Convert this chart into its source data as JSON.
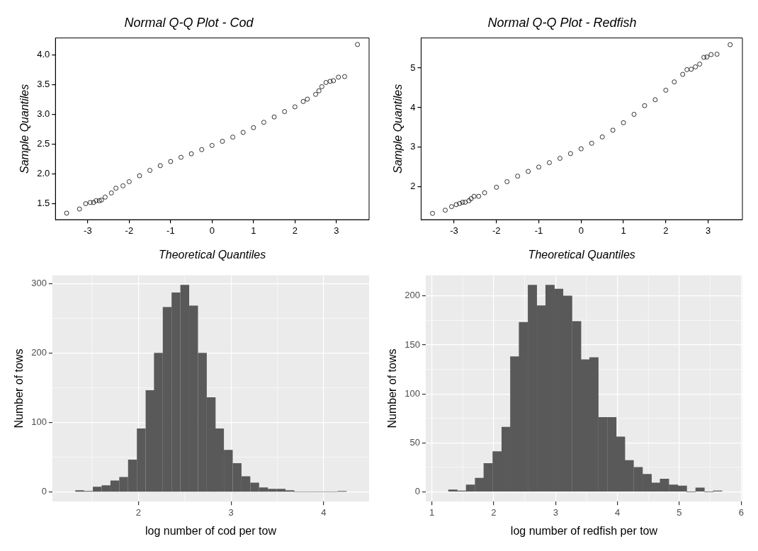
{
  "chart_data": [
    {
      "type": "scatter",
      "title": "Normal Q-Q Plot - Cod",
      "xlabel": "Theoretical Quantiles",
      "ylabel": "Sample Quantiles",
      "color": "#000000",
      "marker": "circle",
      "grid": false,
      "x": [
        -3.51,
        -3.2,
        -3.05,
        -2.94,
        -2.86,
        -2.8,
        -2.72,
        -2.67,
        -2.58,
        -2.43,
        -2.32,
        -2.15,
        -2.0,
        -1.75,
        -1.5,
        -1.25,
        -1.0,
        -0.75,
        -0.5,
        -0.25,
        0.0,
        0.25,
        0.5,
        0.75,
        1.0,
        1.25,
        1.5,
        1.75,
        2.0,
        2.2,
        2.3,
        2.5,
        2.58,
        2.65,
        2.75,
        2.85,
        2.93,
        3.05,
        3.2,
        3.51
      ],
      "values": [
        1.34,
        1.41,
        1.5,
        1.52,
        1.52,
        1.55,
        1.55,
        1.56,
        1.61,
        1.68,
        1.76,
        1.8,
        1.87,
        1.97,
        2.06,
        2.14,
        2.21,
        2.28,
        2.34,
        2.41,
        2.48,
        2.55,
        2.62,
        2.7,
        2.78,
        2.87,
        2.96,
        3.05,
        3.13,
        3.22,
        3.26,
        3.34,
        3.4,
        3.47,
        3.54,
        3.56,
        3.57,
        3.63,
        3.64,
        4.18
      ],
      "xlim": [
        -3.78,
        3.79
      ],
      "xticks": [
        -3,
        -2,
        -1,
        0,
        1,
        2,
        3
      ],
      "ylim": [
        1.23,
        4.29
      ],
      "yticks": [
        1.5,
        {
          "value": 2,
          "label": "2.0"
        },
        2.5,
        {
          "value": 3,
          "label": "3.0"
        },
        3.5,
        {
          "value": 4,
          "label": "4.0"
        }
      ]
    },
    {
      "type": "scatter",
      "title": "Normal Q-Q Plot - Redfish",
      "xlabel": "Theoretical Quantiles",
      "ylabel": "Sample Quantiles",
      "color": "#000000",
      "marker": "circle",
      "grid": false,
      "x": [
        -3.51,
        -3.21,
        -3.06,
        -2.95,
        -2.87,
        -2.8,
        -2.74,
        -2.65,
        -2.6,
        -2.53,
        -2.42,
        -2.28,
        -2.0,
        -1.75,
        -1.5,
        -1.25,
        -1.0,
        -0.75,
        -0.5,
        -0.25,
        0.0,
        0.25,
        0.5,
        0.75,
        1.0,
        1.25,
        1.5,
        1.75,
        2.0,
        2.2,
        2.4,
        2.5,
        2.6,
        2.7,
        2.8,
        2.9,
        2.97,
        3.07,
        3.21,
        3.52
      ],
      "values": [
        1.33,
        1.41,
        1.5,
        1.55,
        1.58,
        1.61,
        1.61,
        1.65,
        1.7,
        1.76,
        1.76,
        1.85,
        1.99,
        2.13,
        2.27,
        2.39,
        2.5,
        2.61,
        2.72,
        2.84,
        2.96,
        3.1,
        3.26,
        3.43,
        3.62,
        3.83,
        4.05,
        4.2,
        4.44,
        4.65,
        4.84,
        4.96,
        4.97,
        5.03,
        5.1,
        5.27,
        5.28,
        5.34,
        5.35,
        5.59
      ],
      "xlim": [
        -3.78,
        3.81
      ],
      "xticks": [
        -3,
        -2,
        -1,
        0,
        1,
        2,
        3
      ],
      "ylim": [
        1.17,
        5.76
      ],
      "yticks": [
        2,
        3,
        4,
        5
      ]
    },
    {
      "type": "histogram",
      "xlabel": "log number of cod per tow",
      "ylabel": "Number of tows",
      "color": "#595959",
      "grid": true,
      "bins": [
        1.32,
        1.41,
        1.51,
        1.6,
        1.7,
        1.79,
        1.89,
        1.98,
        2.08,
        2.17,
        2.26,
        2.36,
        2.45,
        2.55,
        2.64,
        2.74,
        2.83,
        2.92,
        3.02,
        3.11,
        3.21,
        3.3,
        3.4,
        3.49,
        3.59,
        3.68,
        3.77,
        3.87,
        3.96,
        4.06,
        4.15,
        4.25
      ],
      "values": [
        2,
        1,
        7,
        9,
        16,
        21,
        46,
        91,
        146,
        200,
        266,
        287,
        298,
        268,
        200,
        136,
        91,
        60,
        41,
        22,
        13,
        6,
        4,
        4,
        2,
        0,
        0,
        0,
        0,
        0,
        1
      ],
      "xlim": [
        1.07,
        4.49
      ],
      "xticks": [
        2,
        3,
        4
      ],
      "ylim": [
        -14,
        312
      ],
      "yticks": [
        0,
        100,
        200,
        300
      ]
    },
    {
      "type": "histogram",
      "xlabel": "log number of redfish per tow",
      "ylabel": "Number of tows",
      "color": "#595959",
      "grid": true,
      "bins": [
        1.27,
        1.41,
        1.55,
        1.7,
        1.84,
        1.98,
        2.13,
        2.27,
        2.41,
        2.55,
        2.7,
        2.84,
        2.98,
        3.12,
        3.27,
        3.41,
        3.55,
        3.69,
        3.84,
        3.98,
        4.12,
        4.26,
        4.41,
        4.55,
        4.69,
        4.83,
        4.98,
        5.12,
        5.26,
        5.41,
        5.55,
        5.69
      ],
      "values": [
        2,
        1,
        7,
        14,
        29,
        41,
        66,
        138,
        173,
        211,
        190,
        211,
        207,
        200,
        174,
        135,
        137,
        76,
        76,
        56,
        32,
        25,
        18,
        9,
        13,
        7,
        6,
        0,
        4,
        0,
        1
      ],
      "xlim": [
        0.9,
        6.02
      ],
      "xticks": [
        1,
        2,
        3,
        4,
        5,
        6
      ],
      "ylim": [
        -10,
        221
      ],
      "yticks": [
        0,
        50,
        100,
        150,
        200
      ]
    }
  ]
}
